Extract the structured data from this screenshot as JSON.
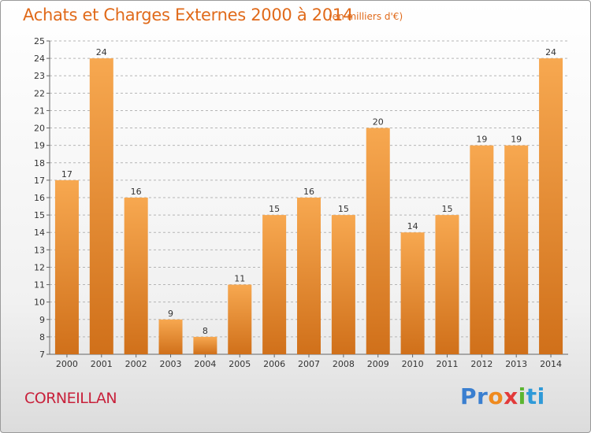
{
  "header": {
    "title": "Achats et Charges Externes 2000 à 2014",
    "subtitle": "(en milliers d'€)"
  },
  "footer": {
    "city": "CORNEILLAN",
    "logo": "Proxiti",
    "logo_parts": [
      "Pr",
      "o",
      "x",
      "i",
      "ti"
    ]
  },
  "colors": {
    "bar_top": "#f7a850",
    "bar_bottom": "#d0701a",
    "grid": "#b5b5b5",
    "title": "#e06a1a",
    "city": "#c8213b"
  },
  "chart_data": {
    "type": "bar",
    "title": "Achats et Charges Externes 2000 à 2014",
    "subtitle": "(en milliers d'€)",
    "xlabel": "",
    "ylabel": "",
    "categories": [
      "2000",
      "2001",
      "2002",
      "2003",
      "2004",
      "2005",
      "2006",
      "2007",
      "2008",
      "2009",
      "2010",
      "2011",
      "2012",
      "2013",
      "2014"
    ],
    "values": [
      17,
      24,
      16,
      9,
      8,
      11,
      15,
      16,
      15,
      20,
      14,
      15,
      19,
      19,
      24
    ],
    "ylim": [
      7,
      25
    ],
    "yticks": [
      7,
      8,
      9,
      10,
      11,
      12,
      13,
      14,
      15,
      16,
      17,
      18,
      19,
      20,
      21,
      22,
      23,
      24,
      25
    ],
    "grid": true,
    "grid_style": "dashed",
    "legend": "none",
    "data_labels": true
  }
}
